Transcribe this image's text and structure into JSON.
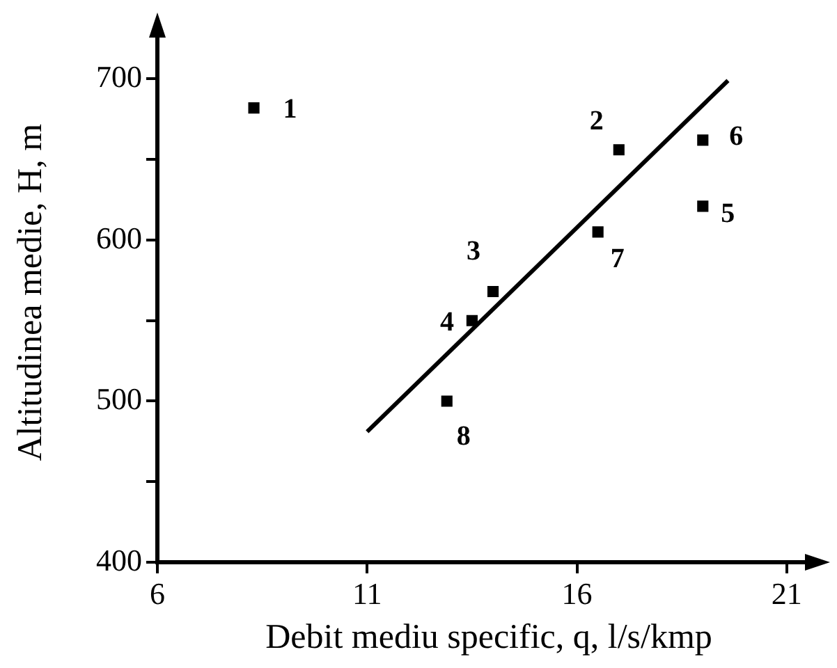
{
  "chart_data": {
    "type": "scatter",
    "xlabel": "Debit mediu specific, q, l/s/kmp",
    "ylabel": "Altitudinea medie, H, m",
    "xlim": [
      6,
      21.8
    ],
    "ylim": [
      400,
      735
    ],
    "xticks": [
      6,
      11,
      16,
      21
    ],
    "yticks": [
      400,
      {
        "value": 450,
        "label": null
      },
      500,
      {
        "value": 550,
        "label": null
      },
      600,
      {
        "value": 650,
        "label": null
      },
      700
    ],
    "grid": false,
    "legend": false,
    "marker": "square",
    "series": [
      {
        "type": "scatter",
        "color": "#000000",
        "x": [
          8.3,
          17.0,
          14.0,
          13.5,
          19.0,
          19.0,
          16.5,
          12.9
        ],
        "values": [
          682,
          656,
          568,
          550,
          621,
          662,
          605,
          500
        ]
      },
      {
        "type": "line",
        "color": "#000000",
        "x": [
          11.0,
          19.6
        ],
        "values": [
          481,
          699
        ],
        "marker": "none",
        "line_style": "solid"
      }
    ],
    "annotations": [
      {
        "text": "1",
        "x": 8.3,
        "y": 682
      },
      {
        "text": "2",
        "x": 17.0,
        "y": 656
      },
      {
        "text": "3",
        "x": 14.0,
        "y": 568
      },
      {
        "text": "4",
        "x": 13.5,
        "y": 550
      },
      {
        "text": "5",
        "x": 19.0,
        "y": 621
      },
      {
        "text": "6",
        "x": 19.0,
        "y": 662
      },
      {
        "text": "7",
        "x": 16.5,
        "y": 605
      },
      {
        "text": "8",
        "x": 12.9,
        "y": 500
      }
    ]
  }
}
